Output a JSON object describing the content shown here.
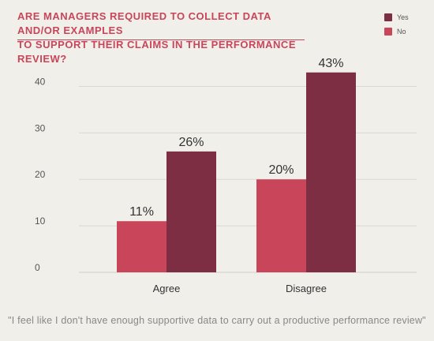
{
  "chart_data": {
    "type": "bar",
    "title": "ARE MANAGERS REQUIRED TO COLLECT DATA AND/OR EXAMPLES\nTO SUPPORT THEIR CLAIMS IN THE PERFORMANCE REVIEW?",
    "categories": [
      "Agree",
      "Disagree"
    ],
    "series": [
      {
        "name": "Yes",
        "color": "#7e2e42",
        "values": [
          26,
          43
        ],
        "labels": [
          "26%",
          "43%"
        ]
      },
      {
        "name": "No",
        "color": "#c8455a",
        "values": [
          11,
          20
        ],
        "labels": [
          "11%",
          "20%"
        ]
      }
    ],
    "series_order_in_bars": [
      "No",
      "Yes"
    ],
    "ylim": [
      0,
      45
    ],
    "yticks": [
      0,
      10,
      20,
      30,
      40
    ],
    "xlabel": "",
    "ylabel": "",
    "grid": true,
    "legend": "top-right"
  },
  "footer": {
    "quote": "\"I feel like I don't have enough supportive data to carry out a productive performance review\""
  }
}
